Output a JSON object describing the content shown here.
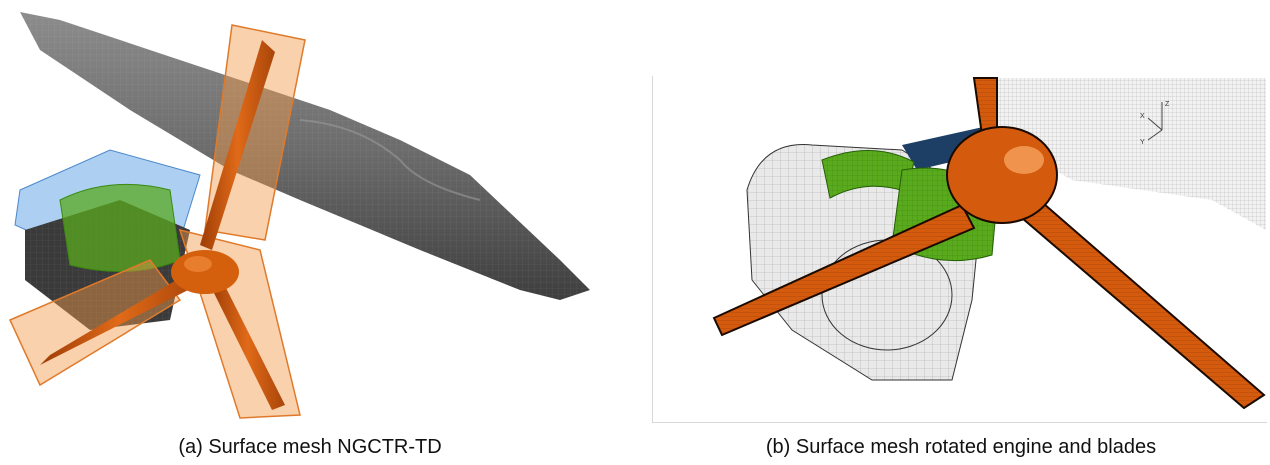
{
  "figure": {
    "panel_a": {
      "caption": "(a) Surface mesh NGCTR-TD"
    },
    "panel_b": {
      "caption": "(b) Surface mesh rotated engine and blades",
      "axis_triad": {
        "x": "X",
        "y": "Y",
        "z": "Z"
      }
    }
  },
  "colors": {
    "wing": "#6a6a6a",
    "blade": "#d45a0e",
    "blade_envelope": "#f29a4a",
    "nacelle_green": "#5aaa1e",
    "nacelle_blue": "#6aa8e8",
    "mesh_light": "#d9d9d9"
  }
}
